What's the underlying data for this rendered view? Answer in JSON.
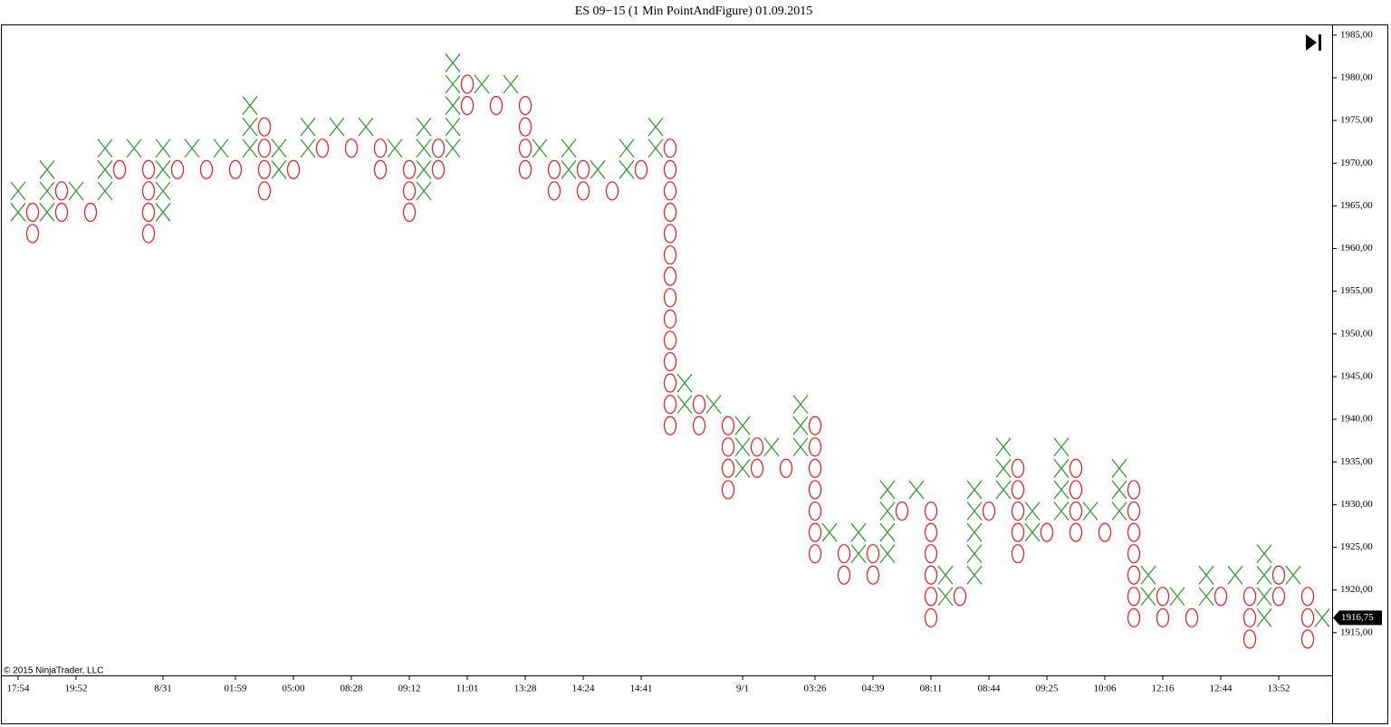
{
  "chart_data": {
    "type": "point-and-figure",
    "title": "ES 09−15 (1 Min PointAndFigure)  01.09.2015",
    "copyright": "© 2015 NinjaTrader, LLC",
    "x_color": "#3a9a3a",
    "o_color": "#e8262a",
    "ylim": [
      1910,
      1986.25
    ],
    "yticks": [
      {
        "value": 1915,
        "label": "1915,00"
      },
      {
        "value": 1920,
        "label": "1920,00"
      },
      {
        "value": 1925,
        "label": "1925,00"
      },
      {
        "value": 1930,
        "label": "1930,00"
      },
      {
        "value": 1935,
        "label": "1935,00"
      },
      {
        "value": 1940,
        "label": "1940,00"
      },
      {
        "value": 1945,
        "label": "1945,00"
      },
      {
        "value": 1950,
        "label": "1950,00"
      },
      {
        "value": 1955,
        "label": "1955,00"
      },
      {
        "value": 1960,
        "label": "1960,00"
      },
      {
        "value": 1965,
        "label": "1965,00"
      },
      {
        "value": 1970,
        "label": "1970,00"
      },
      {
        "value": 1975,
        "label": "1975,00"
      },
      {
        "value": 1980,
        "label": "1980,00"
      },
      {
        "value": 1985,
        "label": "1985,00"
      }
    ],
    "last_price": {
      "value": 1916.75,
      "label": "1916,75"
    },
    "columns": [
      {
        "kind": "X",
        "label": "17:54",
        "values": [
          1964.25,
          1966.75
        ]
      },
      {
        "kind": "O",
        "values": [
          1961.75,
          1964.25
        ]
      },
      {
        "kind": "X",
        "values": [
          1964.25,
          1966.75,
          1969.25
        ]
      },
      {
        "kind": "O",
        "values": [
          1964.25,
          1966.75
        ]
      },
      {
        "kind": "X",
        "label": "19:52",
        "values": [
          1966.75
        ]
      },
      {
        "kind": "O",
        "values": [
          1964.25
        ]
      },
      {
        "kind": "X",
        "values": [
          1966.75,
          1969.25,
          1971.75
        ]
      },
      {
        "kind": "O",
        "values": [
          1969.25
        ]
      },
      {
        "kind": "X",
        "values": [
          1971.75
        ]
      },
      {
        "kind": "O",
        "values": [
          1961.75,
          1964.25,
          1966.75,
          1969.25
        ]
      },
      {
        "kind": "X",
        "label": "8/31",
        "values": [
          1964.25,
          1966.75,
          1969.25,
          1971.75
        ]
      },
      {
        "kind": "O",
        "values": [
          1969.25
        ]
      },
      {
        "kind": "X",
        "values": [
          1971.75
        ]
      },
      {
        "kind": "O",
        "values": [
          1969.25
        ]
      },
      {
        "kind": "X",
        "values": [
          1971.75
        ]
      },
      {
        "kind": "O",
        "label": "01:59",
        "values": [
          1969.25
        ]
      },
      {
        "kind": "X",
        "values": [
          1971.75,
          1974.25,
          1976.75
        ]
      },
      {
        "kind": "O",
        "values": [
          1966.75,
          1969.25,
          1971.75,
          1974.25
        ]
      },
      {
        "kind": "X",
        "values": [
          1969.25,
          1971.75
        ]
      },
      {
        "kind": "O",
        "label": "05:00",
        "values": [
          1969.25
        ]
      },
      {
        "kind": "X",
        "values": [
          1971.75,
          1974.25
        ]
      },
      {
        "kind": "O",
        "values": [
          1971.75
        ]
      },
      {
        "kind": "X",
        "values": [
          1974.25
        ]
      },
      {
        "kind": "O",
        "label": "08:28",
        "values": [
          1971.75
        ]
      },
      {
        "kind": "X",
        "values": [
          1974.25
        ]
      },
      {
        "kind": "O",
        "values": [
          1969.25,
          1971.75
        ]
      },
      {
        "kind": "X",
        "values": [
          1971.75
        ]
      },
      {
        "kind": "O",
        "label": "09:12",
        "values": [
          1964.25,
          1966.75,
          1969.25
        ]
      },
      {
        "kind": "X",
        "values": [
          1966.75,
          1969.25,
          1971.75,
          1974.25
        ]
      },
      {
        "kind": "O",
        "values": [
          1969.25,
          1971.75
        ]
      },
      {
        "kind": "X",
        "values": [
          1971.75,
          1974.25,
          1976.75,
          1979.25,
          1981.75
        ]
      },
      {
        "kind": "O",
        "label": "11:01",
        "values": [
          1976.75,
          1979.25
        ]
      },
      {
        "kind": "X",
        "values": [
          1979.25
        ]
      },
      {
        "kind": "O",
        "values": [
          1976.75
        ]
      },
      {
        "kind": "X",
        "values": [
          1979.25
        ]
      },
      {
        "kind": "O",
        "label": "13:28",
        "values": [
          1969.25,
          1971.75,
          1974.25,
          1976.75
        ]
      },
      {
        "kind": "X",
        "values": [
          1971.75
        ]
      },
      {
        "kind": "O",
        "values": [
          1966.75,
          1969.25
        ]
      },
      {
        "kind": "X",
        "values": [
          1969.25,
          1971.75
        ]
      },
      {
        "kind": "O",
        "label": "14:24",
        "values": [
          1966.75,
          1969.25
        ]
      },
      {
        "kind": "X",
        "values": [
          1969.25
        ]
      },
      {
        "kind": "O",
        "values": [
          1966.75
        ]
      },
      {
        "kind": "X",
        "values": [
          1969.25,
          1971.75
        ]
      },
      {
        "kind": "O",
        "label": "14:41",
        "values": [
          1969.25
        ]
      },
      {
        "kind": "X",
        "values": [
          1971.75,
          1974.25
        ]
      },
      {
        "kind": "O",
        "values": [
          1939.25,
          1941.75,
          1944.25,
          1946.75,
          1949.25,
          1951.75,
          1954.25,
          1956.75,
          1959.25,
          1961.75,
          1964.25,
          1966.75,
          1969.25,
          1971.75
        ]
      },
      {
        "kind": "X",
        "values": [
          1941.75,
          1944.25
        ]
      },
      {
        "kind": "O",
        "values": [
          1939.25,
          1941.75
        ]
      },
      {
        "kind": "X",
        "values": [
          1941.75
        ]
      },
      {
        "kind": "O",
        "values": [
          1931.75,
          1934.25,
          1936.75,
          1939.25
        ]
      },
      {
        "kind": "X",
        "label": "9/1",
        "values": [
          1934.25,
          1936.75,
          1939.25
        ]
      },
      {
        "kind": "O",
        "values": [
          1934.25,
          1936.75
        ]
      },
      {
        "kind": "X",
        "values": [
          1936.75
        ]
      },
      {
        "kind": "O",
        "values": [
          1934.25
        ]
      },
      {
        "kind": "X",
        "values": [
          1936.75,
          1939.25,
          1941.75
        ]
      },
      {
        "kind": "O",
        "label": "03:26",
        "values": [
          1924.25,
          1926.75,
          1929.25,
          1931.75,
          1934.25,
          1936.75,
          1939.25
        ]
      },
      {
        "kind": "X",
        "values": [
          1926.75
        ]
      },
      {
        "kind": "O",
        "values": [
          1921.75,
          1924.25
        ]
      },
      {
        "kind": "X",
        "values": [
          1924.25,
          1926.75
        ]
      },
      {
        "kind": "O",
        "label": "04:39",
        "values": [
          1921.75,
          1924.25
        ]
      },
      {
        "kind": "X",
        "values": [
          1924.25,
          1926.75,
          1929.25,
          1931.75
        ]
      },
      {
        "kind": "O",
        "values": [
          1929.25
        ]
      },
      {
        "kind": "X",
        "values": [
          1931.75
        ]
      },
      {
        "kind": "O",
        "label": "08:11",
        "values": [
          1916.75,
          1919.25,
          1921.75,
          1924.25,
          1926.75,
          1929.25
        ]
      },
      {
        "kind": "X",
        "values": [
          1919.25,
          1921.75
        ]
      },
      {
        "kind": "O",
        "values": [
          1919.25
        ]
      },
      {
        "kind": "X",
        "values": [
          1921.75,
          1924.25,
          1926.75,
          1929.25,
          1931.75
        ]
      },
      {
        "kind": "O",
        "label": "08:44",
        "values": [
          1929.25
        ]
      },
      {
        "kind": "X",
        "values": [
          1931.75,
          1934.25,
          1936.75
        ]
      },
      {
        "kind": "O",
        "values": [
          1924.25,
          1926.75,
          1929.25,
          1931.75,
          1934.25
        ]
      },
      {
        "kind": "X",
        "values": [
          1926.75,
          1929.25
        ]
      },
      {
        "kind": "O",
        "label": "09:25",
        "values": [
          1926.75
        ]
      },
      {
        "kind": "X",
        "values": [
          1929.25,
          1931.75,
          1934.25,
          1936.75
        ]
      },
      {
        "kind": "O",
        "values": [
          1926.75,
          1929.25,
          1931.75,
          1934.25
        ]
      },
      {
        "kind": "X",
        "values": [
          1929.25
        ]
      },
      {
        "kind": "O",
        "label": "10:06",
        "values": [
          1926.75
        ]
      },
      {
        "kind": "X",
        "values": [
          1929.25,
          1931.75,
          1934.25
        ]
      },
      {
        "kind": "O",
        "values": [
          1916.75,
          1919.25,
          1921.75,
          1924.25,
          1926.75,
          1929.25,
          1931.75
        ]
      },
      {
        "kind": "X",
        "values": [
          1919.25,
          1921.75
        ]
      },
      {
        "kind": "O",
        "label": "12:16",
        "values": [
          1916.75,
          1919.25
        ]
      },
      {
        "kind": "X",
        "values": [
          1919.25
        ]
      },
      {
        "kind": "O",
        "values": [
          1916.75
        ]
      },
      {
        "kind": "X",
        "values": [
          1919.25,
          1921.75
        ]
      },
      {
        "kind": "O",
        "label": "12:44",
        "values": [
          1919.25
        ]
      },
      {
        "kind": "X",
        "values": [
          1921.75
        ]
      },
      {
        "kind": "O",
        "values": [
          1914.25,
          1916.75,
          1919.25
        ]
      },
      {
        "kind": "X",
        "values": [
          1916.75,
          1919.25,
          1921.75,
          1924.25
        ]
      },
      {
        "kind": "O",
        "label": "13:52",
        "values": [
          1919.25,
          1921.75
        ]
      },
      {
        "kind": "X",
        "values": [
          1921.75
        ]
      },
      {
        "kind": "O",
        "values": [
          1914.25,
          1916.75,
          1919.25
        ]
      },
      {
        "kind": "X",
        "values": [
          1916.75
        ]
      }
    ]
  }
}
